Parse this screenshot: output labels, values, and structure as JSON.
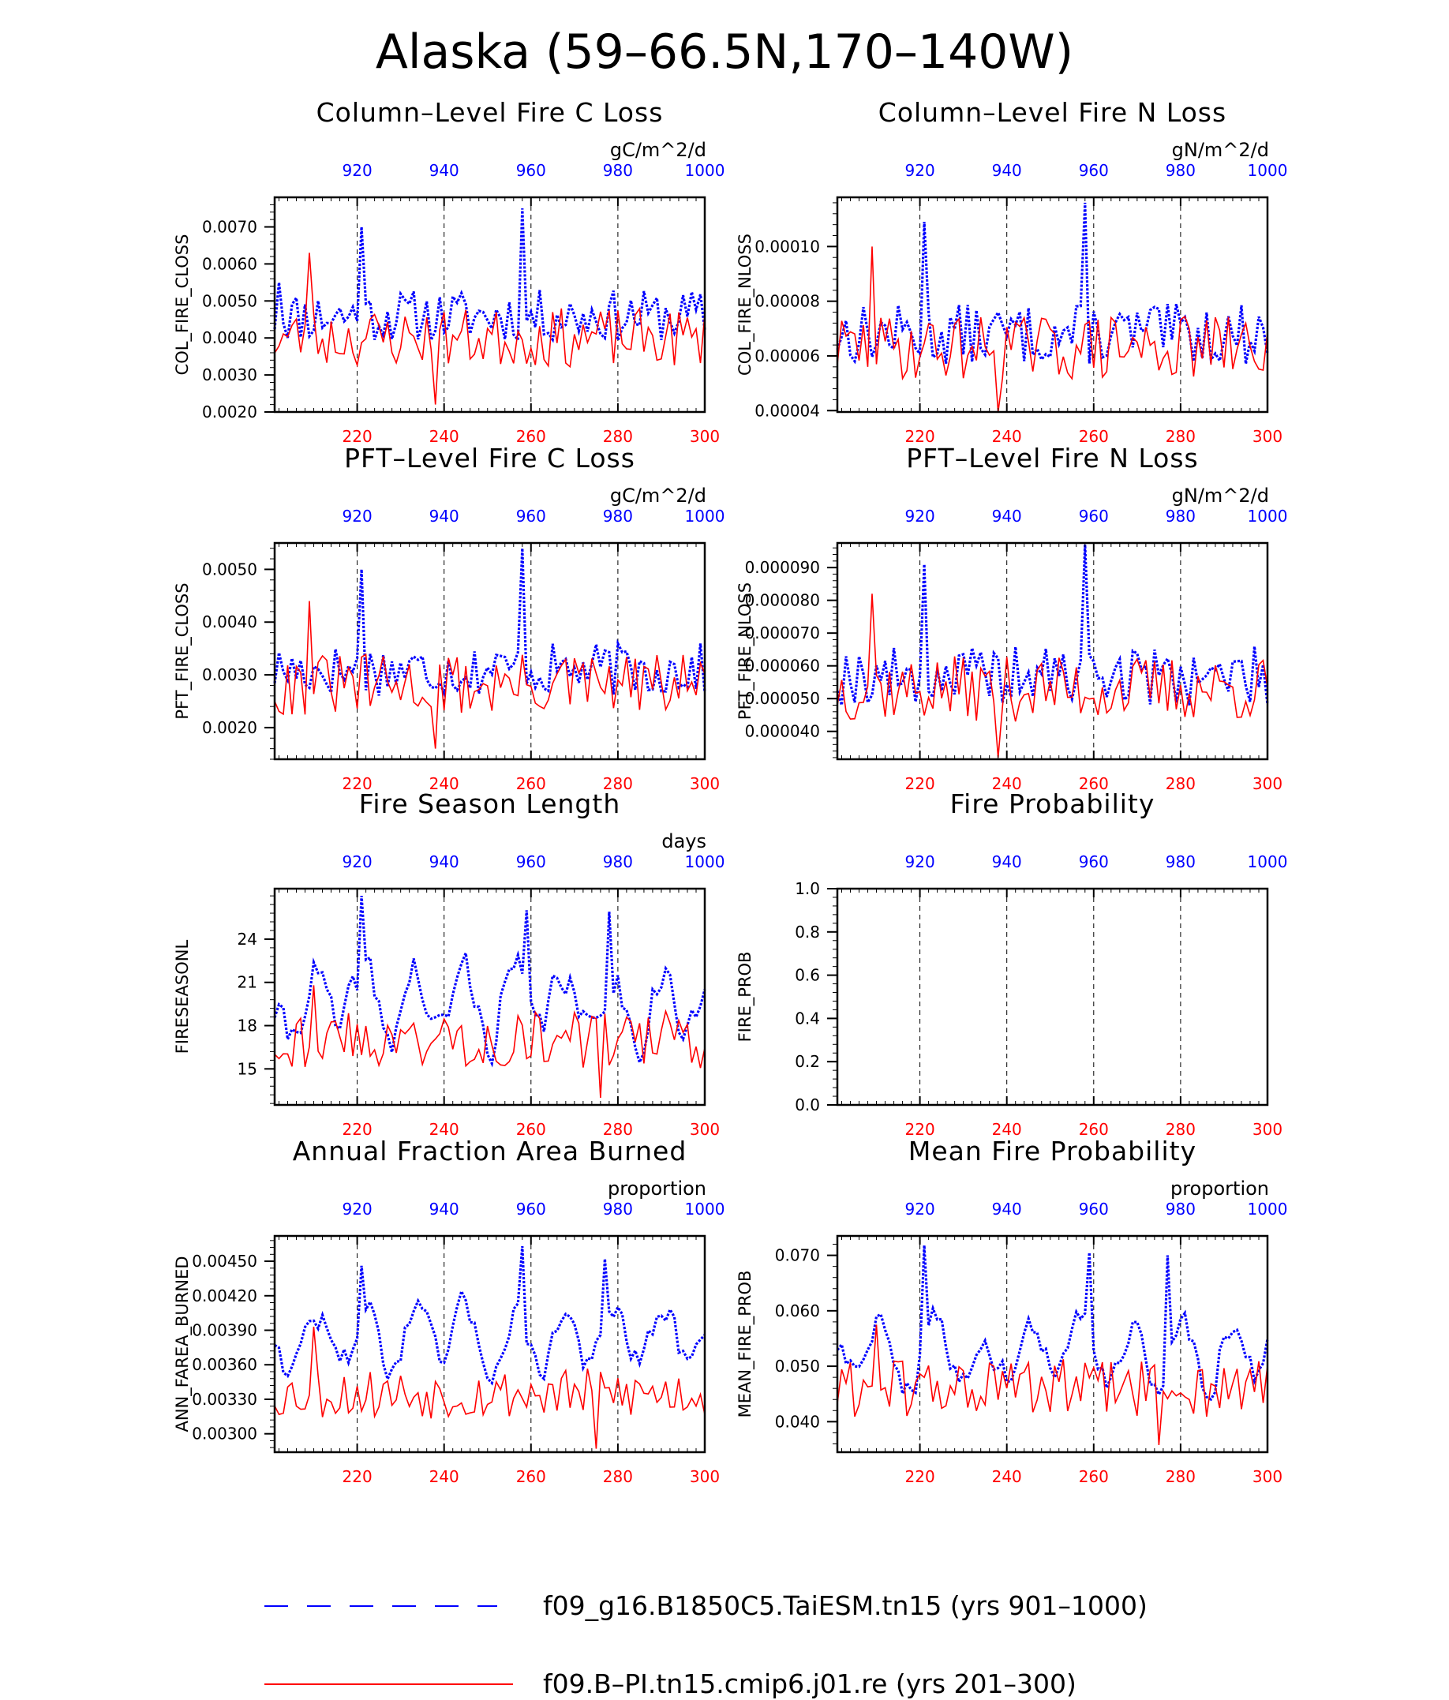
{
  "figure_title": "Alaska (59–66.5N,170–140W)",
  "colors": {
    "series_a": "#0000ff",
    "series_b": "#ff0000"
  },
  "legend": [
    {
      "label": "f09_g16.B1850C5.TaiESM.tn15 (yrs 901–1000)",
      "color": "#0000ff",
      "style": "dashed"
    },
    {
      "label": "f09.B–PI.tn15.cmip6.j01.re (yrs 201–300)",
      "color": "#ff0000",
      "style": "solid"
    }
  ],
  "chart_data": [
    {
      "type": "line",
      "title": "Column–Level Fire C Loss",
      "units": "gC/m^2/d",
      "ylabel": "COL_FIRE_CLOSS",
      "ylim": [
        0.002,
        0.0078
      ],
      "yticks": [
        0.002,
        0.003,
        0.004,
        0.005,
        0.006,
        0.007
      ],
      "yticklabels": [
        "0.0020",
        "0.0030",
        "0.0040",
        "0.0050",
        "0.0060",
        "0.0070"
      ],
      "x_bottom_ticks": [
        220,
        240,
        260,
        280,
        300
      ],
      "x_top_ticks": [
        920,
        940,
        960,
        980,
        1000
      ],
      "series": [
        {
          "name": "f09_g16.B1850C5.TaiESM.tn15 (yrs 901–1000)",
          "x": [
            901,
            1000
          ],
          "seed": 11,
          "base": 0.0046,
          "amp": 0.0007,
          "spikes": [
            [
              20,
              0.007
            ],
            [
              57,
              0.0075
            ],
            [
              1,
              0.0055
            ]
          ]
        },
        {
          "name": "f09.B–PI.tn15.cmip6.j01.re (yrs 201–300)",
          "x": [
            201,
            300
          ],
          "seed": 23,
          "base": 0.004,
          "amp": 0.0008,
          "spikes": [
            [
              8,
              0.0063
            ],
            [
              37,
              0.0022
            ]
          ]
        }
      ]
    },
    {
      "type": "line",
      "title": "Column–Level Fire N Loss",
      "units": "gN/m^2/d",
      "ylabel": "COL_FIRE_NLOSS",
      "ylim": [
        3.95e-05,
        0.000118
      ],
      "yticks": [
        4e-05,
        6e-05,
        8e-05,
        0.0001
      ],
      "yticklabels": [
        "0.00004",
        "0.00006",
        "0.00008",
        "0.00010"
      ],
      "x_bottom_ticks": [
        220,
        240,
        260,
        280,
        300
      ],
      "x_top_ticks": [
        920,
        940,
        960,
        980,
        1000
      ],
      "series": [
        {
          "name": "f09_g16.B1850C5.TaiESM.tn15 (yrs 901–1000)",
          "x": [
            901,
            1000
          ],
          "seed": 13,
          "base": 6.8e-05,
          "amp": 1.1e-05,
          "spikes": [
            [
              20,
              0.000109
            ],
            [
              57,
              0.000116
            ]
          ]
        },
        {
          "name": "f09.B–PI.tn15.cmip6.j01.re (yrs 201–300)",
          "x": [
            201,
            300
          ],
          "seed": 29,
          "base": 6.3e-05,
          "amp": 1.2e-05,
          "spikes": [
            [
              8,
              0.0001
            ],
            [
              37,
              3.8e-05
            ]
          ]
        }
      ]
    },
    {
      "type": "line",
      "title": "PFT–Level Fire C Loss",
      "units": "gC/m^2/d",
      "ylabel": "PFT_FIRE_CLOSS",
      "ylim": [
        0.0014,
        0.0055
      ],
      "yticks": [
        0.002,
        0.003,
        0.004,
        0.005
      ],
      "yticklabels": [
        "0.0020",
        "0.0030",
        "0.0040",
        "0.0050"
      ],
      "x_bottom_ticks": [
        220,
        240,
        260,
        280,
        300
      ],
      "x_top_ticks": [
        920,
        940,
        960,
        980,
        1000
      ],
      "series": [
        {
          "name": "f09_g16.B1850C5.TaiESM.tn15 (yrs 901–1000)",
          "x": [
            901,
            1000
          ],
          "seed": 17,
          "base": 0.0031,
          "amp": 0.0005,
          "spikes": [
            [
              20,
              0.005
            ],
            [
              57,
              0.0054
            ]
          ]
        },
        {
          "name": "f09.B–PI.tn15.cmip6.j01.re (yrs 201–300)",
          "x": [
            201,
            300
          ],
          "seed": 31,
          "base": 0.0028,
          "amp": 0.0006,
          "spikes": [
            [
              8,
              0.0044
            ],
            [
              37,
              0.0016
            ]
          ]
        }
      ]
    },
    {
      "type": "line",
      "title": "PFT–Level Fire N Loss",
      "units": "gN/m^2/d",
      "ylabel": "PFT_FIRE_NLOSS",
      "ylim": [
        3.15e-05,
        9.75e-05
      ],
      "yticks": [
        4e-05,
        5e-05,
        6e-05,
        7e-05,
        8e-05,
        9e-05
      ],
      "yticklabels": [
        "0.000040",
        "0.000050",
        "0.000060",
        "0.000070",
        "0.000080",
        "0.000090"
      ],
      "x_bottom_ticks": [
        220,
        240,
        260,
        280,
        300
      ],
      "x_top_ticks": [
        920,
        940,
        960,
        980,
        1000
      ],
      "series": [
        {
          "name": "f09_g16.B1850C5.TaiESM.tn15 (yrs 901–1000)",
          "x": [
            901,
            1000
          ],
          "seed": 19,
          "base": 5.7e-05,
          "amp": 9e-06,
          "spikes": [
            [
              20,
              9.1e-05
            ],
            [
              57,
              9.7e-05
            ]
          ]
        },
        {
          "name": "f09.B–PI.tn15.cmip6.j01.re (yrs 201–300)",
          "x": [
            201,
            300
          ],
          "seed": 37,
          "base": 5.3e-05,
          "amp": 1e-05,
          "spikes": [
            [
              8,
              8.2e-05
            ],
            [
              37,
              3.2e-05
            ]
          ]
        }
      ]
    },
    {
      "type": "line",
      "title": "Fire Season Length",
      "units": "days",
      "ylabel": "FIRESEASONL",
      "ylim": [
        12.5,
        27.5
      ],
      "yticks": [
        15,
        18,
        21,
        24
      ],
      "yticklabels": [
        "15",
        "18",
        "21",
        "24"
      ],
      "x_bottom_ticks": [
        220,
        240,
        260,
        280,
        300
      ],
      "x_top_ticks": [
        920,
        940,
        960,
        980,
        1000
      ],
      "series": [
        {
          "name": "f09_g16.B1850C5.TaiESM.tn15 (yrs 901–1000)",
          "x": [
            901,
            1000
          ],
          "seed": 41,
          "base": 19.5,
          "amp": 3.2,
          "smooth": true,
          "spikes": [
            [
              20,
              27
            ],
            [
              58,
              26
            ],
            [
              77,
              25.9
            ]
          ]
        },
        {
          "name": "f09.B–PI.tn15.cmip6.j01.re (yrs 201–300)",
          "x": [
            201,
            300
          ],
          "seed": 43,
          "base": 17.0,
          "amp": 2.0,
          "spikes": [
            [
              9,
              20.8
            ],
            [
              75,
              13.0
            ]
          ]
        }
      ]
    },
    {
      "type": "line",
      "title": "Fire Probability",
      "units": "",
      "ylabel": "FIRE_PROB",
      "ylim": [
        0,
        1
      ],
      "yticks": [
        0,
        0.2,
        0.4,
        0.6,
        0.8,
        1.0
      ],
      "yticklabels": [
        "0.0",
        "0.2",
        "0.4",
        "0.6",
        "0.8",
        "1.0"
      ],
      "x_bottom_ticks": [
        220,
        240,
        260,
        280,
        300
      ],
      "x_top_ticks": [
        920,
        940,
        960,
        980,
        1000
      ],
      "series": []
    },
    {
      "type": "line",
      "title": "Annual Fraction Area Burned",
      "units": "proportion",
      "ylabel": "ANN_FAREA_BURNED",
      "ylim": [
        0.00284,
        0.00472
      ],
      "yticks": [
        0.003,
        0.0033,
        0.0036,
        0.0039,
        0.0042,
        0.0045
      ],
      "yticklabels": [
        "0.00300",
        "0.00330",
        "0.00360",
        "0.00390",
        "0.00420",
        "0.00450"
      ],
      "x_bottom_ticks": [
        220,
        240,
        260,
        280,
        300
      ],
      "x_top_ticks": [
        920,
        940,
        960,
        980,
        1000
      ],
      "series": [
        {
          "name": "f09_g16.B1850C5.TaiESM.tn15 (yrs 901–1000)",
          "x": [
            901,
            1000
          ],
          "seed": 47,
          "base": 0.00382,
          "amp": 0.0003,
          "smooth": true,
          "spikes": [
            [
              20,
              0.00446
            ],
            [
              57,
              0.00463
            ],
            [
              76,
              0.00452
            ]
          ]
        },
        {
          "name": "f09.B–PI.tn15.cmip6.j01.re (yrs 201–300)",
          "x": [
            201,
            300
          ],
          "seed": 53,
          "base": 0.00335,
          "amp": 0.00022,
          "spikes": [
            [
              9,
              0.00393
            ],
            [
              74,
              0.00287
            ]
          ]
        }
      ]
    },
    {
      "type": "line",
      "title": "Mean Fire Probability",
      "units": "proportion",
      "ylabel": "MEAN_FIRE_PROB",
      "ylim": [
        0.0345,
        0.0735
      ],
      "yticks": [
        0.04,
        0.05,
        0.06,
        0.07
      ],
      "yticklabels": [
        "0.040",
        "0.050",
        "0.060",
        "0.070"
      ],
      "x_bottom_ticks": [
        220,
        240,
        260,
        280,
        300
      ],
      "x_top_ticks": [
        920,
        940,
        960,
        980,
        1000
      ],
      "series": [
        {
          "name": "f09_g16.B1850C5.TaiESM.tn15 (yrs 901–1000)",
          "x": [
            901,
            1000
          ],
          "seed": 59,
          "base": 0.0525,
          "amp": 0.0065,
          "smooth": true,
          "spikes": [
            [
              20,
              0.0718
            ],
            [
              58,
              0.0705
            ],
            [
              76,
              0.07
            ]
          ]
        },
        {
          "name": "f09.B–PI.tn15.cmip6.j01.re (yrs 201–300)",
          "x": [
            201,
            300
          ],
          "seed": 61,
          "base": 0.046,
          "amp": 0.0055,
          "spikes": [
            [
              9,
              0.0575
            ],
            [
              74,
              0.0358
            ]
          ]
        }
      ]
    }
  ]
}
